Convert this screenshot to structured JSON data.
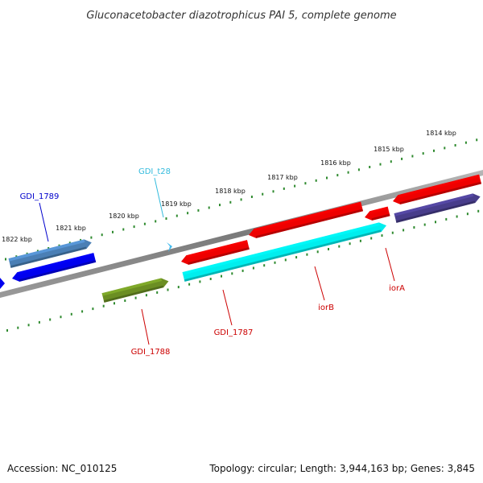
{
  "title": "Gluconacetobacter diazotrophicus PAI 5, complete genome",
  "footer": {
    "accession": "Accession: NC_010125",
    "summary": "Topology: circular; Length: 3,944,163 bp; Genes: 3,845"
  },
  "colors": {
    "backbone": "#8a8a8a",
    "tick": "#2f8a2f",
    "label_dark_blue": "#0000cc",
    "label_cyan": "#33bbdd",
    "label_red": "#cc0000"
  },
  "chart_data": {
    "type": "genome-map",
    "tick_labels": [
      "1822 kbp",
      "1821 kbp",
      "1820 kbp",
      "1819 kbp",
      "1818 kbp",
      "1817 kbp",
      "1816 kbp",
      "1815 kbp",
      "1814 kbp"
    ],
    "genes": [
      {
        "label": "GDI_1789",
        "strand": "forward",
        "color": "#4a7fb5"
      },
      {
        "label": "",
        "strand": "reverse",
        "color": "#0000ee"
      },
      {
        "label": "GDI_t28",
        "strand": "forward",
        "color": "#44bbee"
      },
      {
        "label": "GDI_1788",
        "strand": "forward",
        "color": "#6b8e23"
      },
      {
        "label": "GDI_1787",
        "strand": "forward",
        "color": "#00eeee"
      },
      {
        "label": "",
        "strand": "reverse",
        "color": "#ee0000"
      },
      {
        "label": "iorB",
        "strand": "reverse",
        "color": "#ee0000"
      },
      {
        "label": "iorA",
        "strand": "reverse",
        "color": "#ee0000"
      },
      {
        "label": "",
        "strand": "reverse",
        "color": "#ee0000"
      },
      {
        "label": "",
        "strand": "forward",
        "color": "#483d8b"
      }
    ]
  }
}
